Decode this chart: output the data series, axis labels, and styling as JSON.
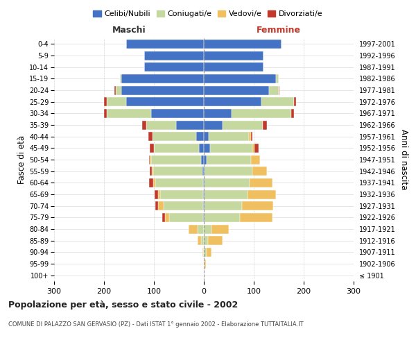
{
  "age_groups": [
    "100+",
    "95-99",
    "90-94",
    "85-89",
    "80-84",
    "75-79",
    "70-74",
    "65-69",
    "60-64",
    "55-59",
    "50-54",
    "45-49",
    "40-44",
    "35-39",
    "30-34",
    "25-29",
    "20-24",
    "15-19",
    "10-14",
    "5-9",
    "0-4"
  ],
  "birth_years": [
    "≤ 1901",
    "1902-1906",
    "1907-1911",
    "1912-1916",
    "1917-1921",
    "1922-1926",
    "1927-1931",
    "1932-1936",
    "1937-1941",
    "1942-1946",
    "1947-1951",
    "1952-1956",
    "1957-1961",
    "1962-1966",
    "1967-1971",
    "1972-1976",
    "1977-1981",
    "1982-1986",
    "1987-1991",
    "1992-1996",
    "1997-2001"
  ],
  "males": {
    "celibi": [
      0,
      0,
      0,
      0,
      0,
      2,
      2,
      2,
      2,
      3,
      5,
      10,
      15,
      55,
      105,
      155,
      165,
      165,
      120,
      120,
      155
    ],
    "coniugati": [
      0,
      0,
      2,
      5,
      12,
      68,
      78,
      85,
      95,
      98,
      100,
      90,
      88,
      60,
      90,
      40,
      12,
      3,
      0,
      0,
      0
    ],
    "vedovi": [
      0,
      0,
      1,
      8,
      18,
      8,
      12,
      5,
      5,
      3,
      3,
      0,
      0,
      0,
      0,
      0,
      0,
      0,
      0,
      0,
      0
    ],
    "divorziati": [
      0,
      0,
      0,
      0,
      0,
      5,
      5,
      7,
      8,
      5,
      2,
      8,
      8,
      8,
      5,
      5,
      2,
      0,
      0,
      0,
      0
    ]
  },
  "females": {
    "nubili": [
      0,
      0,
      0,
      0,
      0,
      2,
      2,
      2,
      2,
      2,
      5,
      12,
      10,
      38,
      55,
      115,
      130,
      145,
      120,
      120,
      155
    ],
    "coniugate": [
      0,
      2,
      5,
      8,
      15,
      70,
      75,
      85,
      90,
      95,
      90,
      85,
      80,
      80,
      120,
      65,
      20,
      5,
      0,
      0,
      0
    ],
    "vedove": [
      0,
      2,
      10,
      30,
      35,
      65,
      62,
      58,
      45,
      30,
      18,
      5,
      5,
      0,
      0,
      0,
      0,
      0,
      0,
      0,
      0
    ],
    "divorziate": [
      0,
      0,
      0,
      0,
      0,
      0,
      0,
      0,
      0,
      0,
      0,
      8,
      2,
      8,
      5,
      5,
      2,
      0,
      0,
      0,
      0
    ]
  },
  "colors": {
    "celibi": "#4472c4",
    "coniugati": "#c5d8a0",
    "vedovi": "#f0c060",
    "divorziati": "#c0392b"
  },
  "xlim": 300,
  "title": "Popolazione per età, sesso e stato civile - 2002",
  "subtitle": "COMUNE DI PALAZZO SAN GERVASIO (PZ) - Dati ISTAT 1° gennaio 2002 - Elaborazione TUTTAITALIA.IT",
  "ylabel_left": "Fasce di età",
  "ylabel_right": "Anni di nascita",
  "legend_labels": [
    "Celibi/Nubili",
    "Coniugati/e",
    "Vedovi/e",
    "Divorziati/e"
  ],
  "maschi_label": "Maschi",
  "femmine_label": "Femmine"
}
